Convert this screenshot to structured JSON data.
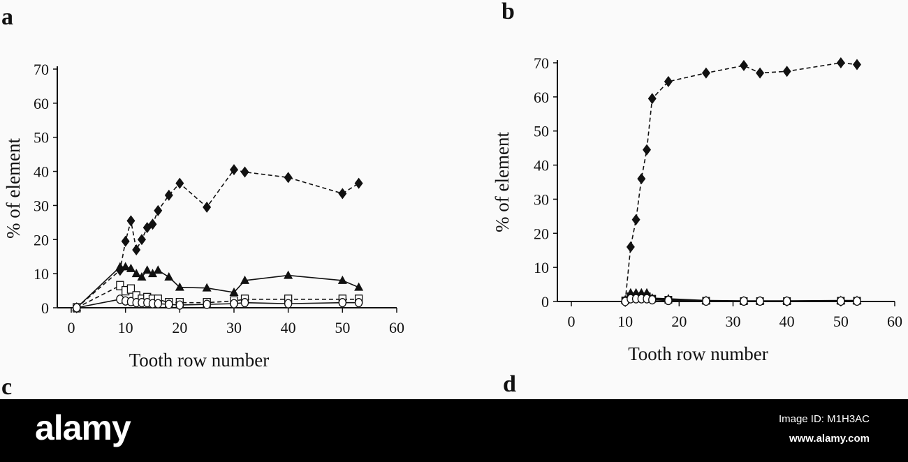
{
  "panels": {
    "a": "a",
    "b": "b",
    "c": "c",
    "d": "d"
  },
  "footer": {
    "logo": "alamy",
    "image_id": "Image ID: M1H3AC",
    "site": "www.alamy.com"
  },
  "chart_data": [
    {
      "type": "line",
      "panel": "a",
      "title": "",
      "xlabel": "Tooth row number",
      "ylabel": "% of element",
      "xlim": [
        0,
        60
      ],
      "ylim": [
        0,
        70
      ],
      "xticks": [
        0,
        10,
        20,
        30,
        40,
        50,
        60
      ],
      "yticks": [
        0,
        10,
        20,
        30,
        40,
        50,
        60,
        70
      ],
      "grid": false,
      "series": [
        {
          "marker": "diamond-filled",
          "line": "dashed",
          "points": [
            [
              1,
              0
            ],
            [
              9,
              11
            ],
            [
              10,
              19.5
            ],
            [
              11,
              25.5
            ],
            [
              12,
              17
            ],
            [
              13,
              20
            ],
            [
              14,
              23.5
            ],
            [
              15,
              24.5
            ],
            [
              16,
              28.5
            ],
            [
              18,
              33
            ],
            [
              20,
              36.5
            ],
            [
              25,
              29.5
            ],
            [
              30,
              40.5
            ],
            [
              32,
              39.8
            ],
            [
              40,
              38.2
            ],
            [
              50,
              33.5
            ],
            [
              53,
              36.5
            ]
          ]
        },
        {
          "marker": "triangle-filled",
          "line": "solid",
          "points": [
            [
              1,
              0
            ],
            [
              9,
              12
            ],
            [
              10,
              12
            ],
            [
              11,
              11.5
            ],
            [
              12,
              10
            ],
            [
              13,
              9
            ],
            [
              14,
              11
            ],
            [
              15,
              10
            ],
            [
              16,
              11
            ],
            [
              18,
              9
            ],
            [
              20,
              6
            ],
            [
              25,
              5.8
            ],
            [
              30,
              4.5
            ],
            [
              32,
              8
            ],
            [
              40,
              9.5
            ],
            [
              50,
              8
            ],
            [
              53,
              6
            ]
          ]
        },
        {
          "marker": "square-open",
          "line": "dashed",
          "points": [
            [
              1,
              0
            ],
            [
              9,
              6.5
            ],
            [
              10,
              5
            ],
            [
              11,
              5.5
            ],
            [
              12,
              3.5
            ],
            [
              13,
              2.5
            ],
            [
              14,
              3
            ],
            [
              15,
              2.5
            ],
            [
              16,
              2.5
            ],
            [
              18,
              1.5
            ],
            [
              20,
              1.5
            ],
            [
              25,
              1.5
            ],
            [
              30,
              2
            ],
            [
              32,
              2.5
            ],
            [
              40,
              2.5
            ],
            [
              50,
              2.5
            ],
            [
              53,
              2.5
            ]
          ]
        },
        {
          "marker": "circle-open",
          "line": "solid",
          "points": [
            [
              1,
              0
            ],
            [
              9,
              2.5
            ],
            [
              10,
              2
            ],
            [
              11,
              1.8
            ],
            [
              12,
              1.5
            ],
            [
              13,
              1.5
            ],
            [
              14,
              1.5
            ],
            [
              15,
              1.2
            ],
            [
              16,
              1.2
            ],
            [
              18,
              1
            ],
            [
              20,
              0.8
            ],
            [
              25,
              1
            ],
            [
              30,
              1.2
            ],
            [
              32,
              1.5
            ],
            [
              40,
              1.2
            ],
            [
              50,
              1.5
            ],
            [
              53,
              1.5
            ]
          ]
        }
      ]
    },
    {
      "type": "line",
      "panel": "b",
      "title": "",
      "xlabel": "Tooth row number",
      "ylabel": "% of element",
      "xlim": [
        0,
        60
      ],
      "ylim": [
        0,
        70
      ],
      "xticks": [
        0,
        10,
        20,
        30,
        40,
        50,
        60
      ],
      "yticks": [
        0,
        10,
        20,
        30,
        40,
        50,
        60,
        70
      ],
      "grid": false,
      "series": [
        {
          "marker": "diamond-filled",
          "line": "dashed",
          "points": [
            [
              10,
              0
            ],
            [
              11,
              16
            ],
            [
              12,
              24
            ],
            [
              13,
              36
            ],
            [
              14,
              44.5
            ],
            [
              15,
              59.5
            ],
            [
              18,
              64.5
            ],
            [
              25,
              67
            ],
            [
              32,
              69.2
            ],
            [
              35,
              67
            ],
            [
              40,
              67.5
            ],
            [
              50,
              70
            ],
            [
              53,
              69.5
            ]
          ]
        },
        {
          "marker": "triangle-filled",
          "line": "solid",
          "points": [
            [
              10,
              0.5
            ],
            [
              11,
              2.5
            ],
            [
              12,
              2.5
            ],
            [
              13,
              2.5
            ],
            [
              14,
              2.5
            ],
            [
              15,
              1
            ],
            [
              18,
              0.8
            ],
            [
              25,
              0.3
            ],
            [
              32,
              0.2
            ],
            [
              35,
              0.2
            ],
            [
              40,
              0.2
            ],
            [
              50,
              0.3
            ],
            [
              53,
              0.3
            ]
          ]
        },
        {
          "marker": "square-filled",
          "line": "solid",
          "points": [
            [
              10,
              0.3
            ],
            [
              11,
              1.5
            ],
            [
              12,
              1.5
            ],
            [
              13,
              1.5
            ],
            [
              14,
              1.5
            ],
            [
              15,
              0.8
            ],
            [
              18,
              0.5
            ],
            [
              25,
              0.2
            ],
            [
              32,
              0.1
            ],
            [
              35,
              0.1
            ],
            [
              40,
              0.1
            ],
            [
              50,
              0.2
            ],
            [
              53,
              0.2
            ]
          ]
        },
        {
          "marker": "circle-open",
          "line": "solid",
          "points": [
            [
              10,
              0
            ],
            [
              11,
              0.8
            ],
            [
              12,
              0.8
            ],
            [
              13,
              0.8
            ],
            [
              14,
              0.8
            ],
            [
              15,
              0.5
            ],
            [
              18,
              0.3
            ],
            [
              25,
              0.1
            ],
            [
              32,
              0.1
            ],
            [
              35,
              0.1
            ],
            [
              40,
              0.1
            ],
            [
              50,
              0.1
            ],
            [
              53,
              0.1
            ]
          ]
        }
      ]
    }
  ]
}
